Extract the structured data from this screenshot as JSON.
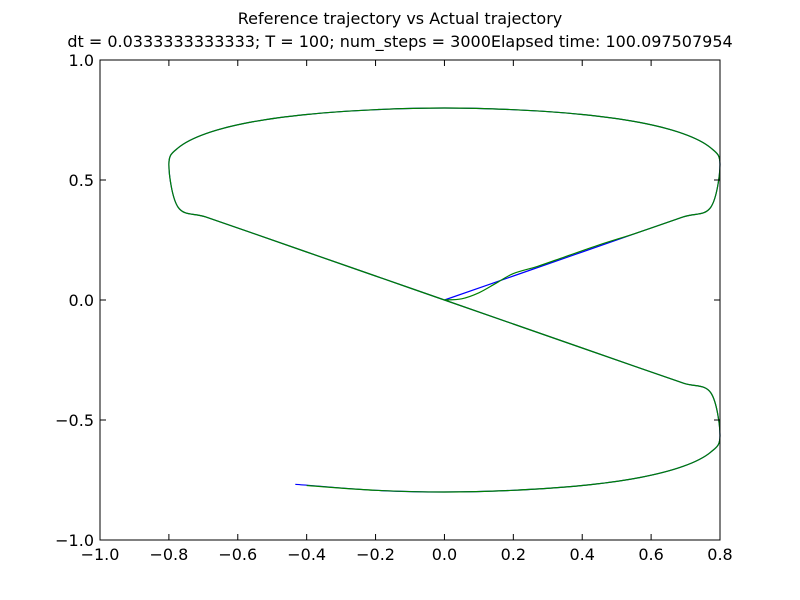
{
  "chart_data": {
    "type": "line",
    "title": "Reference trajectory vs Actual trajectory",
    "subtitle": "dt = 0.0333333333333; T = 100; num_steps = 3000Elapsed time: 100.097507954",
    "xlabel": "",
    "ylabel": "",
    "xlim": [
      -1.0,
      0.8
    ],
    "ylim": [
      -1.0,
      1.0
    ],
    "xticks": [
      -1.0,
      -0.8,
      -0.6,
      -0.4,
      -0.2,
      0.0,
      0.2,
      0.4,
      0.6,
      0.8
    ],
    "xtick_labels": [
      "−1.0",
      "−0.8",
      "−0.6",
      "−0.4",
      "−0.2",
      "0.0",
      "0.2",
      "0.4",
      "0.6",
      "0.8"
    ],
    "yticks": [
      1.0,
      0.5,
      0.0,
      -0.5,
      -1.0
    ],
    "ytick_labels": [
      "1.0",
      "0.5",
      "0.0",
      "−0.5",
      "−1.0"
    ],
    "grid": false,
    "legend": "none",
    "series": [
      {
        "color": "#0000ff",
        "x": [
          0.0,
          0.2,
          0.4,
          0.566,
          0.693,
          0.773,
          0.8,
          0.773,
          0.693,
          0.566,
          0.4,
          0.2,
          0.0,
          -0.2,
          -0.4,
          -0.566,
          -0.693,
          -0.773,
          -0.8,
          -0.773,
          -0.693,
          -0.566,
          -0.4,
          -0.2,
          0.0,
          0.2,
          0.4,
          0.566,
          0.693,
          0.773,
          0.8,
          0.773,
          0.693,
          0.566,
          0.4,
          0.2,
          0.0,
          -0.2,
          -0.433
        ],
        "y": [
          0.0,
          0.1,
          0.2,
          0.283,
          0.346,
          0.386,
          0.565,
          0.634,
          0.693,
          0.74,
          0.773,
          0.793,
          0.8,
          0.793,
          0.773,
          0.74,
          0.693,
          0.634,
          0.565,
          0.386,
          0.346,
          0.283,
          0.2,
          0.1,
          0.0,
          -0.1,
          -0.2,
          -0.283,
          -0.346,
          -0.386,
          -0.565,
          -0.634,
          -0.693,
          -0.74,
          -0.773,
          -0.793,
          -0.8,
          -0.793,
          -0.768
        ]
      },
      {
        "color": "#008000",
        "x": [
          0.0,
          0.05,
          0.1,
          0.15,
          0.2,
          0.27,
          0.35,
          0.45,
          0.566,
          0.693,
          0.773,
          0.8,
          0.773,
          0.693,
          0.566,
          0.4,
          0.2,
          0.0,
          -0.2,
          -0.4,
          -0.566,
          -0.693,
          -0.773,
          -0.8,
          -0.773,
          -0.693,
          -0.566,
          -0.4,
          -0.2,
          0.0,
          0.2,
          0.4,
          0.566,
          0.693,
          0.773,
          0.8,
          0.773,
          0.693,
          0.566,
          0.4,
          0.2,
          0.0,
          -0.2,
          -0.4
        ],
        "y": [
          0.0,
          0.005,
          0.03,
          0.07,
          0.11,
          0.14,
          0.18,
          0.23,
          0.283,
          0.346,
          0.386,
          0.565,
          0.634,
          0.693,
          0.74,
          0.773,
          0.793,
          0.8,
          0.793,
          0.773,
          0.74,
          0.693,
          0.634,
          0.565,
          0.386,
          0.346,
          0.283,
          0.2,
          0.1,
          0.0,
          -0.1,
          -0.2,
          -0.283,
          -0.346,
          -0.386,
          -0.565,
          -0.634,
          -0.693,
          -0.74,
          -0.773,
          -0.793,
          -0.8,
          -0.793,
          -0.773
        ]
      }
    ]
  }
}
